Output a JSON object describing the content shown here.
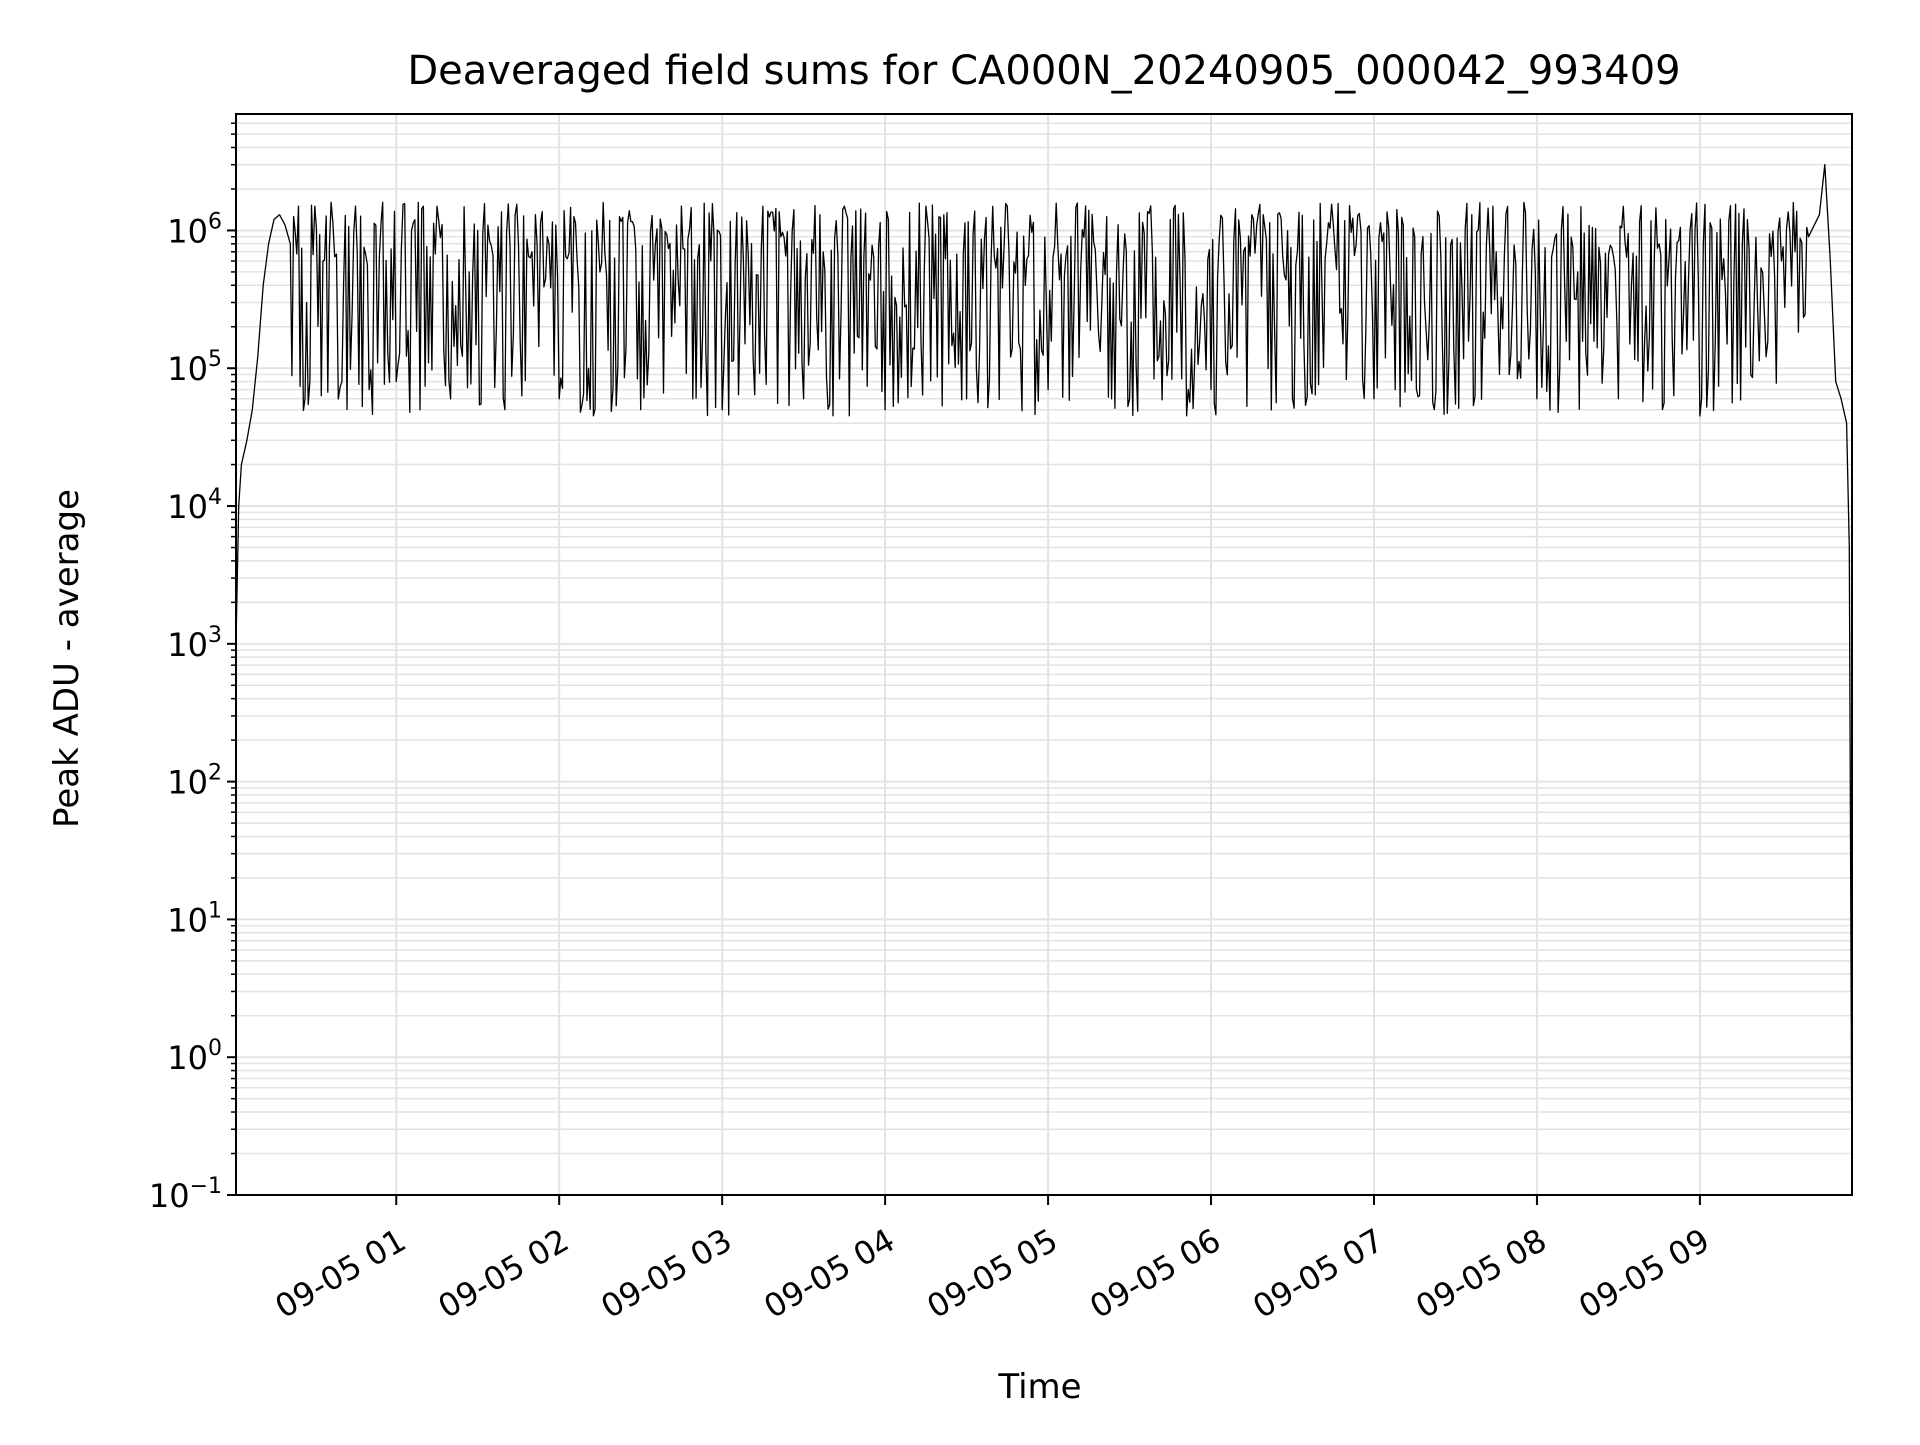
{
  "chart_data": {
    "type": "line",
    "title": "Deaveraged field sums for CA000N_20240905_000042_993409",
    "xlabel": "Time",
    "ylabel": "Peak ADU - average",
    "y_scale": "log",
    "ylim": [
      0.1,
      7000000
    ],
    "xlim": [
      "09-05 00:01",
      "09-05 09:56"
    ],
    "grid": true,
    "legend": "none",
    "line_color": "#000000",
    "x_ticks": [
      {
        "value": "09-05 01:00",
        "label": "09-05 01"
      },
      {
        "value": "09-05 02:00",
        "label": "09-05 02"
      },
      {
        "value": "09-05 03:00",
        "label": "09-05 03"
      },
      {
        "value": "09-05 04:00",
        "label": "09-05 04"
      },
      {
        "value": "09-05 05:00",
        "label": "09-05 05"
      },
      {
        "value": "09-05 06:00",
        "label": "09-05 06"
      },
      {
        "value": "09-05 07:00",
        "label": "09-05 07"
      },
      {
        "value": "09-05 08:00",
        "label": "09-05 08"
      },
      {
        "value": "09-05 09:00",
        "label": "09-05 09"
      }
    ],
    "y_ticks": [
      {
        "value": 0.1,
        "base": "10",
        "exp": "−1"
      },
      {
        "value": 1,
        "base": "10",
        "exp": "0"
      },
      {
        "value": 10,
        "base": "10",
        "exp": "1"
      },
      {
        "value": 100,
        "base": "10",
        "exp": "2"
      },
      {
        "value": 1000,
        "base": "10",
        "exp": "3"
      },
      {
        "value": 10000,
        "base": "10",
        "exp": "4"
      },
      {
        "value": 100000,
        "base": "10",
        "exp": "5"
      },
      {
        "value": 1000000,
        "base": "10",
        "exp": "6"
      }
    ],
    "series": [
      {
        "x": [
          "09-05 00:01",
          "09-05 00:02",
          "09-05 00:03",
          "09-05 00:05",
          "09-05 00:07",
          "09-05 00:09",
          "09-05 00:11",
          "09-05 00:13",
          "09-05 00:15",
          "09-05 00:17",
          "09-05 00:19",
          "09-05 00:21",
          "09-05 00:24",
          "09-05 00:27",
          "09-05 00:30",
          "09-05 00:33",
          "09-05 00:36",
          "09-05 00:40",
          "09-05 00:45",
          "09-05 00:50",
          "09-05 00:55",
          "09-05 01:00",
          "09-05 01:10",
          "09-05 01:20",
          "09-05 01:30",
          "09-05 01:40",
          "09-05 01:50",
          "09-05 02:00",
          "09-05 02:15",
          "09-05 02:30",
          "09-05 02:45",
          "09-05 03:00",
          "09-05 03:15",
          "09-05 03:30",
          "09-05 03:45",
          "09-05 04:00",
          "09-05 04:15",
          "09-05 04:30",
          "09-05 04:45",
          "09-05 05:00",
          "09-05 05:15",
          "09-05 05:30",
          "09-05 05:45",
          "09-05 06:00",
          "09-05 06:15",
          "09-05 06:30",
          "09-05 06:45",
          "09-05 07:00",
          "09-05 07:15",
          "09-05 07:30",
          "09-05 07:45",
          "09-05 08:00",
          "09-05 08:15",
          "09-05 08:30",
          "09-05 08:45",
          "09-05 09:00",
          "09-05 09:10",
          "09-05 09:20",
          "09-05 09:30",
          "09-05 09:35",
          "09-05 09:40",
          "09-05 09:44",
          "09-05 09:46",
          "09-05 09:48",
          "09-05 09:50",
          "09-05 09:52",
          "09-05 09:54",
          "09-05 09:55",
          "09-05 09:56"
        ],
        "y": [
          1000,
          10000,
          20000,
          30000,
          50000,
          120000,
          400000,
          800000,
          1200000,
          1300000,
          1100000,
          800000,
          1500000,
          300000,
          1500000,
          600000,
          1600000,
          80000,
          1500000,
          70000,
          1600000,
          80000,
          1500000,
          60000,
          1000000,
          50000,
          700000,
          60000,
          500000,
          50000,
          1500000,
          50000,
          1500000,
          60000,
          1500000,
          50000,
          1500000,
          60000,
          1500000,
          70000,
          1400000,
          60000,
          1200000,
          70000,
          1300000,
          60000,
          1100000,
          60000,
          900000,
          55000,
          700000,
          60000,
          500000,
          60000,
          800000,
          45000,
          150000,
          300000,
          600000,
          700000,
          900000,
          1300000,
          3000000,
          600000,
          80000,
          60000,
          40000,
          5000,
          0.1
        ]
      }
    ]
  }
}
